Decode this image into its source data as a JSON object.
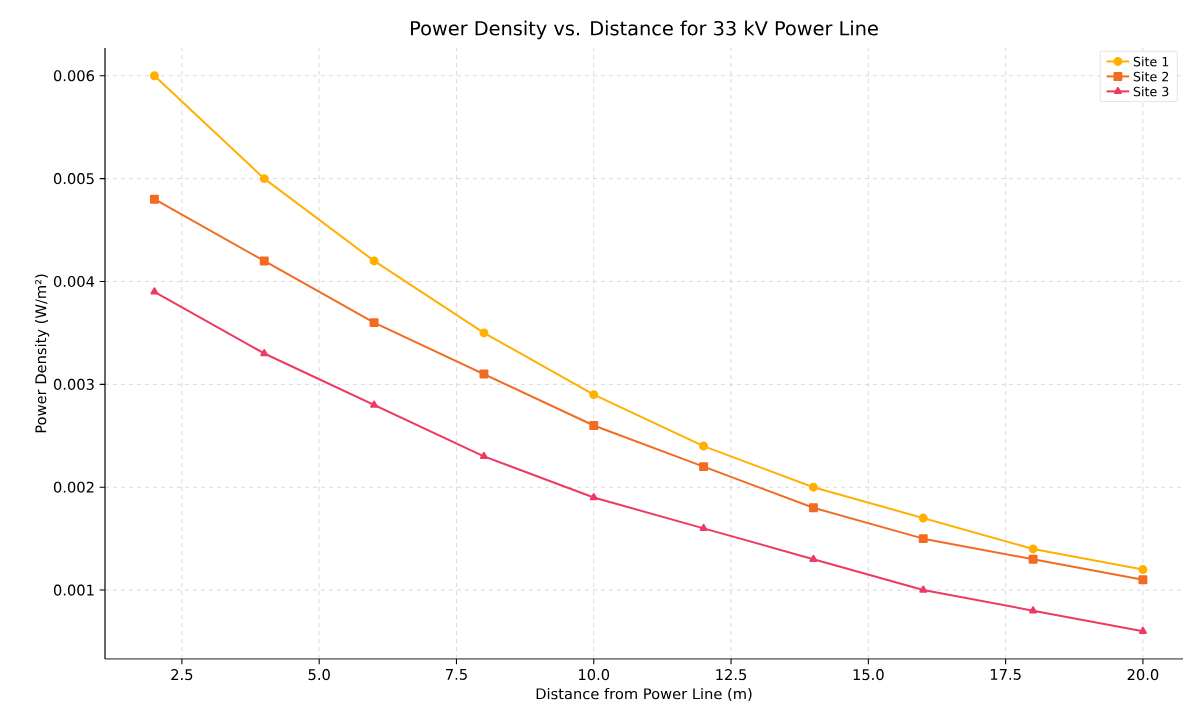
{
  "chart_data": {
    "type": "line",
    "title": "Power Density vs. Distance for 33 kV Power Line",
    "xlabel": "Distance from Power Line (m)",
    "ylabel": "Power Density (W/m²)",
    "x": [
      2,
      4,
      6,
      8,
      10,
      12,
      14,
      16,
      18,
      20
    ],
    "series": [
      {
        "name": "Site 1",
        "color": "#ffb000",
        "marker": "circle",
        "values": [
          0.006,
          0.005,
          0.0042,
          0.0035,
          0.0029,
          0.0024,
          0.002,
          0.0017,
          0.0014,
          0.0012
        ]
      },
      {
        "name": "Site 2",
        "color": "#f26b21",
        "marker": "square",
        "values": [
          0.0048,
          0.0042,
          0.0036,
          0.0031,
          0.0026,
          0.0022,
          0.0018,
          0.0015,
          0.0013,
          0.0011
        ]
      },
      {
        "name": "Site 3",
        "color": "#ee3a60",
        "marker": "triangle",
        "values": [
          0.0039,
          0.0033,
          0.0028,
          0.0023,
          0.0019,
          0.0016,
          0.0013,
          0.001,
          0.0008,
          0.0006
        ]
      }
    ],
    "xlim": [
      1.1,
      20.73
    ],
    "ylim": [
      0.00033,
      0.00627
    ],
    "xticks": [
      2.5,
      {
        "value": 5,
        "label": "5.0"
      },
      7.5,
      {
        "value": 10,
        "label": "10.0"
      },
      12.5,
      {
        "value": 15,
        "label": "15.0"
      },
      17.5,
      {
        "value": 20,
        "label": "20.0"
      }
    ],
    "yticks": [
      0.001,
      0.002,
      0.003,
      0.004,
      0.005,
      0.006
    ],
    "grid": true,
    "legend": "top right",
    "line_style": "solid"
  }
}
